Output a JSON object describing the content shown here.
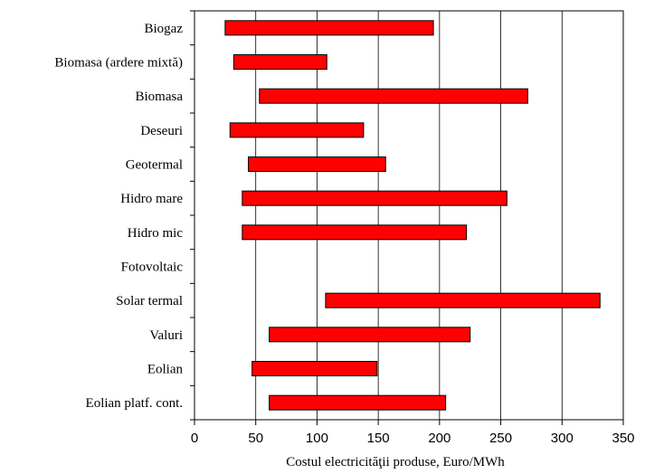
{
  "chart_data": {
    "type": "bar",
    "orientation": "horizontal",
    "subtype": "floating-range",
    "categories": [
      "Biogaz",
      "Biomasa (ardere mixtă)",
      "Biomasa",
      "Deseuri",
      "Geotermal",
      "Hidro mare",
      "Hidro mic",
      "Fotovoltaic",
      "Solar termal",
      "Valuri",
      "Eolian",
      "Eolian platf. cont."
    ],
    "series": [
      {
        "ranges": [
          [
            25,
            195
          ],
          [
            32,
            108
          ],
          [
            53,
            272
          ],
          [
            29,
            138
          ],
          [
            44,
            156
          ],
          [
            39,
            255
          ],
          [
            39,
            222
          ],
          null,
          [
            107,
            331
          ],
          [
            61,
            225
          ],
          [
            47,
            149
          ],
          [
            61,
            205
          ]
        ]
      }
    ],
    "xlabel": "Costul electricităţii produse, Euro/MWh",
    "ylabel": "",
    "xlim": [
      0,
      350
    ],
    "xticks": [
      "0",
      "50",
      "100",
      "150",
      "200",
      "250",
      "300",
      "350"
    ],
    "grid": "vertical",
    "legend": "none"
  },
  "colors": {
    "bar_fill": "#ff0000",
    "bar_stroke": "#000000",
    "grid": "#000000",
    "axis": "#000000"
  }
}
